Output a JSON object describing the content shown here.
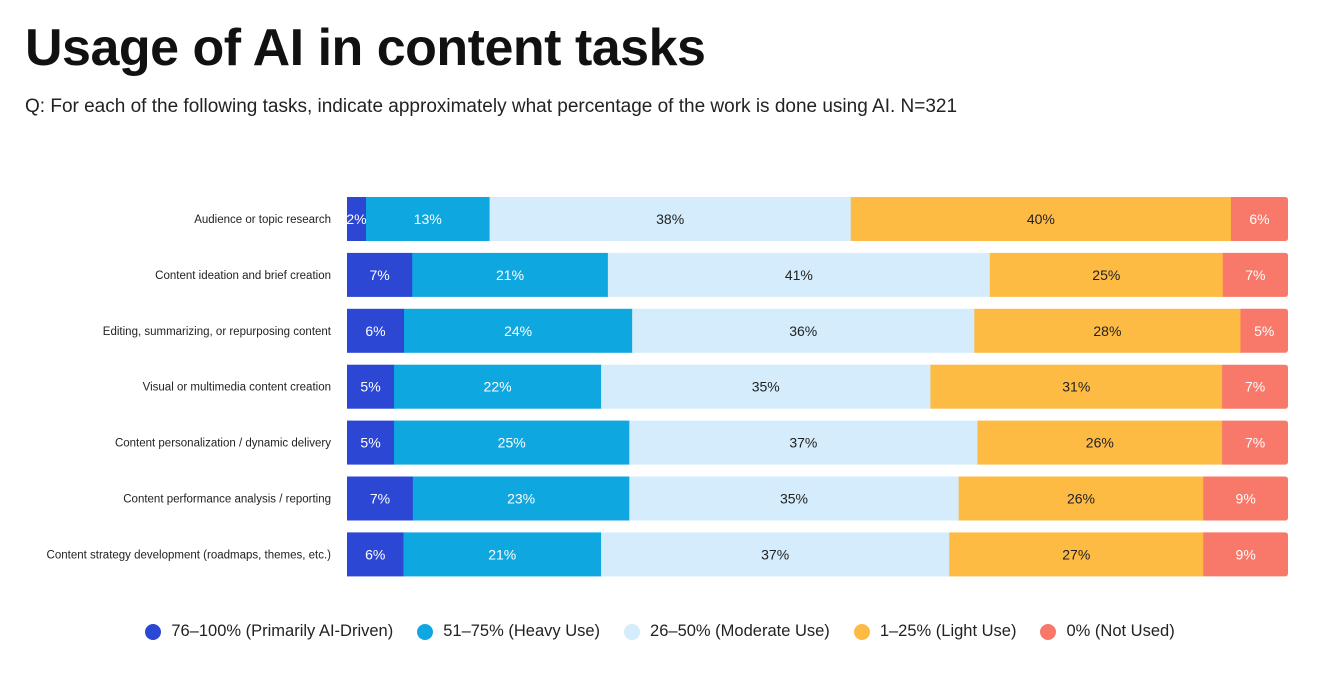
{
  "title": "Usage of AI in content tasks",
  "subtitle": "Q: For each of the following tasks, indicate approximately what percentage of the work is done using AI. N=321",
  "chart_data": {
    "type": "bar",
    "orientation": "horizontal",
    "stacked": true,
    "categories": [
      "Audience or topic research",
      "Content ideation and brief creation",
      "Editing, summarizing, or repurposing content",
      "Visual or multimedia content creation",
      "Content personalization / dynamic delivery",
      "Content performance analysis / reporting",
      "Content strategy development (roadmaps, themes, etc.)"
    ],
    "series": [
      {
        "name": "76–100% (Primarily AI-Driven)",
        "color": "#2b47d4",
        "label_color": "#ffffff",
        "values": [
          2,
          7,
          6,
          5,
          5,
          7,
          6
        ]
      },
      {
        "name": "51–75% (Heavy Use)",
        "color": "#0fa7df",
        "label_color": "#ffffff",
        "values": [
          13,
          21,
          24,
          22,
          25,
          23,
          21
        ]
      },
      {
        "name": "26–50% (Moderate Use)",
        "color": "#d4ecfb",
        "label_color": "#222222",
        "values": [
          38,
          41,
          36,
          35,
          37,
          35,
          37
        ]
      },
      {
        "name": "1–25% (Light Use)",
        "color": "#fdbb44",
        "label_color": "#222222",
        "values": [
          40,
          25,
          28,
          31,
          26,
          26,
          27
        ]
      },
      {
        "name": "0% (Not Used)",
        "color": "#f8786a",
        "label_color": "#ffffff",
        "values": [
          6,
          7,
          5,
          7,
          7,
          9,
          9
        ]
      }
    ],
    "value_suffix": "%",
    "legend_position": "bottom",
    "grid": false
  }
}
